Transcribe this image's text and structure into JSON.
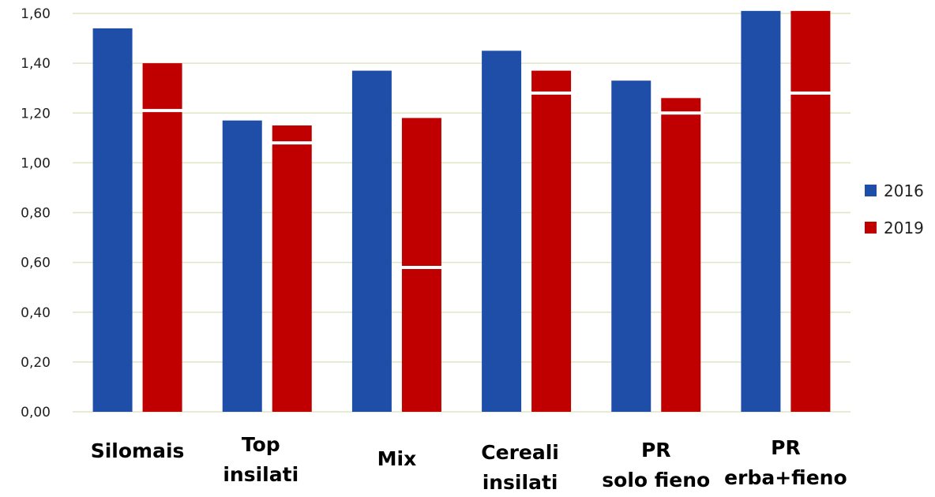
{
  "chart_data": {
    "type": "bar",
    "title": "",
    "xlabel": "",
    "ylabel": "",
    "ylim": [
      0,
      1.6
    ],
    "yticks": [
      "0,00",
      "0,20",
      "0,40",
      "0,60",
      "0,80",
      "1,00",
      "1,20",
      "1,40",
      "1,60"
    ],
    "categories": [
      [
        "Silomais"
      ],
      [
        "Top",
        "insilati"
      ],
      [
        "Mix"
      ],
      [
        "Cereali",
        "insilati"
      ],
      [
        "PR",
        "solo fieno"
      ],
      [
        "PR",
        "erba+fieno"
      ]
    ],
    "series": [
      {
        "name": "2016",
        "color": "#1f4ea8",
        "values": [
          1.54,
          1.17,
          1.37,
          1.45,
          1.33,
          1.61
        ]
      },
      {
        "name": "2019",
        "color": "#c00000",
        "values": [
          1.4,
          1.15,
          1.18,
          1.37,
          1.26,
          1.61
        ]
      }
    ],
    "markers_2019": [
      1.21,
      1.08,
      0.58,
      1.28,
      1.2,
      1.28
    ],
    "grid": true,
    "legend_position": "right",
    "gridline_color": "#dde6c5"
  }
}
